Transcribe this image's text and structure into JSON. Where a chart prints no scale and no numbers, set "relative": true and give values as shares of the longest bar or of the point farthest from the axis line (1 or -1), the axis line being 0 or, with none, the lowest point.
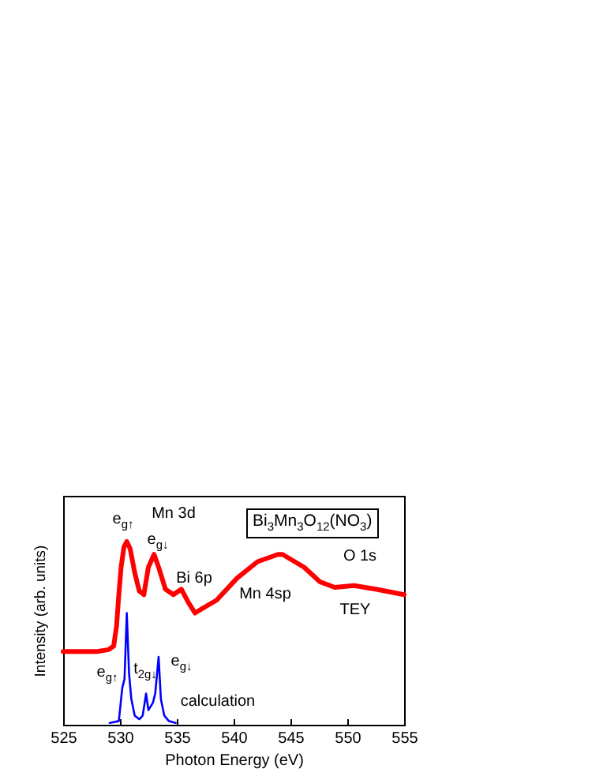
{
  "chart_data": {
    "type": "line",
    "title": "Bi$_{3}$Mn$_{3}$O$_{12}$(NO$_{3}$)",
    "xlabel": "Photon Energy (eV)",
    "ylabel": "Intensity (arb. units)",
    "relative": true,
    "xlim": [
      525,
      555
    ],
    "xticks": [
      525,
      530,
      535,
      540,
      545,
      550,
      555
    ],
    "grid": false,
    "series": [
      {
        "color": "#ff0000",
        "x": [
          525,
          526,
          527,
          528,
          529,
          529.45,
          529.7,
          529.9,
          530.1,
          530.35,
          530.6,
          530.9,
          531.3,
          531.7,
          532.1,
          532.5,
          533,
          533.4,
          534,
          534.7,
          535.4,
          536,
          536.6,
          537.4,
          538.5,
          540.3,
          542.1,
          543.9,
          544.3,
          546.2,
          547.6,
          548.9,
          550.6,
          552.5,
          555
        ],
        "values": [
          0.4,
          0.4,
          0.4,
          0.4,
          0.41,
          0.43,
          0.54,
          0.71,
          0.86,
          0.97,
          1.0,
          0.96,
          0.83,
          0.73,
          0.71,
          0.86,
          0.93,
          0.86,
          0.74,
          0.71,
          0.74,
          0.67,
          0.61,
          0.64,
          0.68,
          0.8,
          0.89,
          0.93,
          0.93,
          0.86,
          0.78,
          0.75,
          0.76,
          0.74,
          0.71
        ]
      },
      {
        "color": "#0000ff",
        "x": [
          529.1,
          529.9,
          530.2,
          530.4,
          530.6,
          530.8,
          531,
          531.3,
          531.7,
          532,
          532.3,
          532.5,
          532.9,
          533.1,
          533.4,
          533.6,
          533.9,
          534.3,
          534.9
        ],
        "values": [
          0.01,
          0.02,
          0.2,
          0.25,
          0.61,
          0.28,
          0.14,
          0.05,
          0.03,
          0.05,
          0.17,
          0.08,
          0.12,
          0.17,
          0.37,
          0.14,
          0.05,
          0.02,
          0.01
        ]
      }
    ],
    "annotations": [
      "e$_{g↑}$",
      "Mn 3d",
      "e$_{g↓}$",
      "Bi 6p",
      "Mn 4sp",
      "O 1s",
      "TEY",
      "e$_{g↑}$",
      "t$_{2g↓}$",
      "e$_{g↓}$",
      "calculation"
    ]
  }
}
